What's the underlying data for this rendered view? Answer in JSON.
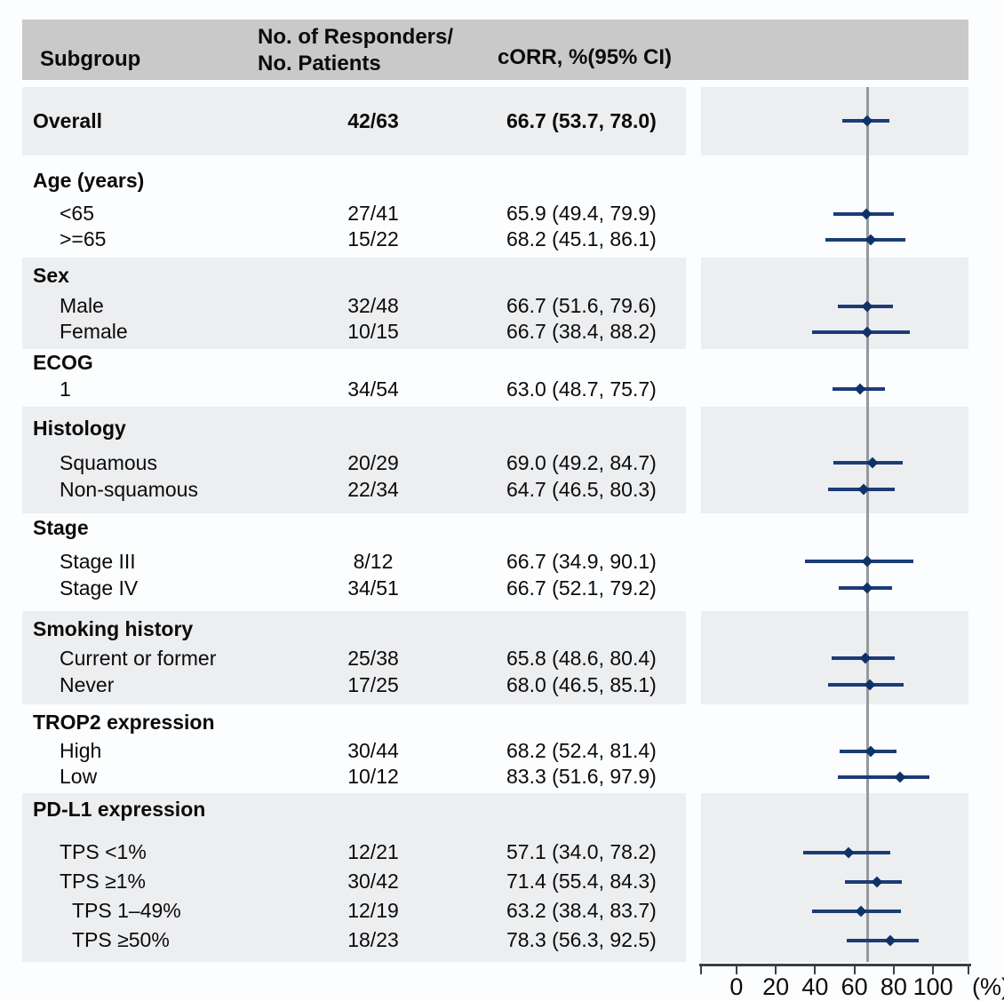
{
  "header": {
    "col_subgroup": "Subgroup",
    "col_ratio_line1": "No. of Responders/",
    "col_ratio_line2": "No. Patients",
    "col_corr": "cORR, %(95% CI)"
  },
  "chart_data": {
    "type": "forest",
    "xlabel": "(%)",
    "x_ticks": [
      0,
      20,
      40,
      60,
      80,
      100
    ],
    "xlim": [
      -18,
      118
    ],
    "reference_line": 66.7,
    "legend_position": "none",
    "grid": false,
    "colors": {
      "ci": "#1b3c78",
      "marker": "#0f3269",
      "ref": "#94999e",
      "band": "#edeef0",
      "header_bg": "#c9c9c9",
      "axis": "#3c3f43"
    },
    "groups": [
      {
        "title": null,
        "rows": [
          {
            "label": "Overall",
            "indent": 0,
            "ratio": "42/63",
            "corr": "66.7 (53.7, 78.0)",
            "est": 66.7,
            "lo": 53.7,
            "hi": 78.0
          }
        ]
      },
      {
        "title": "Age (years)",
        "rows": [
          {
            "label": "<65",
            "indent": 1,
            "ratio": "27/41",
            "corr": "65.9 (49.4, 79.9)",
            "est": 65.9,
            "lo": 49.4,
            "hi": 79.9
          },
          {
            "label": ">=65",
            "indent": 1,
            "ratio": "15/22",
            "corr": "68.2 (45.1, 86.1)",
            "est": 68.2,
            "lo": 45.1,
            "hi": 86.1
          }
        ]
      },
      {
        "title": "Sex",
        "rows": [
          {
            "label": "Male",
            "indent": 1,
            "ratio": "32/48",
            "corr": "66.7 (51.6, 79.6)",
            "est": 66.7,
            "lo": 51.6,
            "hi": 79.6
          },
          {
            "label": "Female",
            "indent": 1,
            "ratio": "10/15",
            "corr": "66.7 (38.4, 88.2)",
            "est": 66.7,
            "lo": 38.4,
            "hi": 88.2
          }
        ]
      },
      {
        "title": "ECOG",
        "rows": [
          {
            "label": "1",
            "indent": 1,
            "ratio": "34/54",
            "corr": "63.0 (48.7, 75.7)",
            "est": 63.0,
            "lo": 48.7,
            "hi": 75.7
          }
        ]
      },
      {
        "title": "Histology",
        "rows": [
          {
            "label": "Squamous",
            "indent": 1,
            "ratio": "20/29",
            "corr": "69.0 (49.2, 84.7)",
            "est": 69.0,
            "lo": 49.2,
            "hi": 84.7
          },
          {
            "label": "Non-squamous",
            "indent": 1,
            "ratio": "22/34",
            "corr": "64.7 (46.5, 80.3)",
            "est": 64.7,
            "lo": 46.5,
            "hi": 80.3
          }
        ]
      },
      {
        "title": "Stage",
        "rows": [
          {
            "label": "Stage III",
            "indent": 1,
            "ratio": "8/12",
            "corr": "66.7 (34.9, 90.1)",
            "est": 66.7,
            "lo": 34.9,
            "hi": 90.1
          },
          {
            "label": "Stage IV",
            "indent": 1,
            "ratio": "34/51",
            "corr": "66.7 (52.1, 79.2)",
            "est": 66.7,
            "lo": 52.1,
            "hi": 79.2
          }
        ]
      },
      {
        "title": "Smoking history",
        "rows": [
          {
            "label": "Current or former",
            "indent": 1,
            "ratio": "25/38",
            "corr": "65.8 (48.6, 80.4)",
            "est": 65.8,
            "lo": 48.6,
            "hi": 80.4
          },
          {
            "label": "Never",
            "indent": 1,
            "ratio": "17/25",
            "corr": "68.0 (46.5, 85.1)",
            "est": 68.0,
            "lo": 46.5,
            "hi": 85.1
          }
        ]
      },
      {
        "title": "TROP2 expression",
        "rows": [
          {
            "label": "High",
            "indent": 1,
            "ratio": "30/44",
            "corr": "68.2 (52.4, 81.4)",
            "est": 68.2,
            "lo": 52.4,
            "hi": 81.4
          },
          {
            "label": "Low",
            "indent": 1,
            "ratio": "10/12",
            "corr": "83.3 (51.6, 97.9)",
            "est": 83.3,
            "lo": 51.6,
            "hi": 97.9
          }
        ]
      },
      {
        "title": "PD-L1 expression",
        "rows": [
          {
            "label": "TPS <1%",
            "indent": 1,
            "ratio": "12/21",
            "corr": "57.1 (34.0, 78.2)",
            "est": 57.1,
            "lo": 34.0,
            "hi": 78.2
          },
          {
            "label": "TPS ≥1%",
            "indent": 1,
            "ratio": "30/42",
            "corr": "71.4 (55.4, 84.3)",
            "est": 71.4,
            "lo": 55.4,
            "hi": 84.3
          },
          {
            "label": "TPS 1–49%",
            "indent": 2,
            "ratio": "12/19",
            "corr": "63.2 (38.4, 83.7)",
            "est": 63.2,
            "lo": 38.4,
            "hi": 83.7
          },
          {
            "label": "TPS ≥50%",
            "indent": 2,
            "ratio": "18/23",
            "corr": "78.3 (56.3, 92.5)",
            "est": 78.3,
            "lo": 56.3,
            "hi": 92.5
          }
        ]
      }
    ]
  }
}
